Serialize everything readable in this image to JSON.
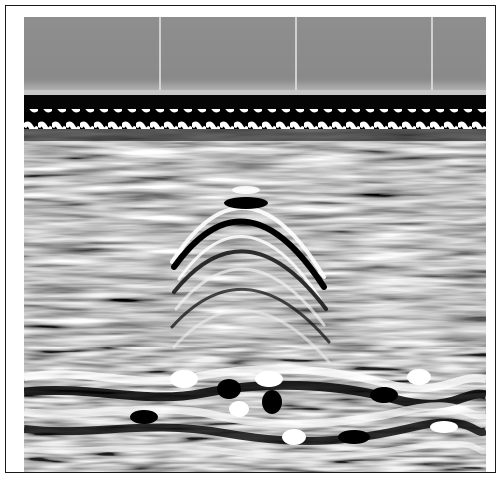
{
  "image": {
    "subject": "ground-penetrating-radar-radargram",
    "colors": {
      "header_band": "#8c8c8c",
      "background_noise": "#9a9a9a",
      "dark_reflection": "#000000",
      "bright_reflection": "#ffffff"
    }
  }
}
